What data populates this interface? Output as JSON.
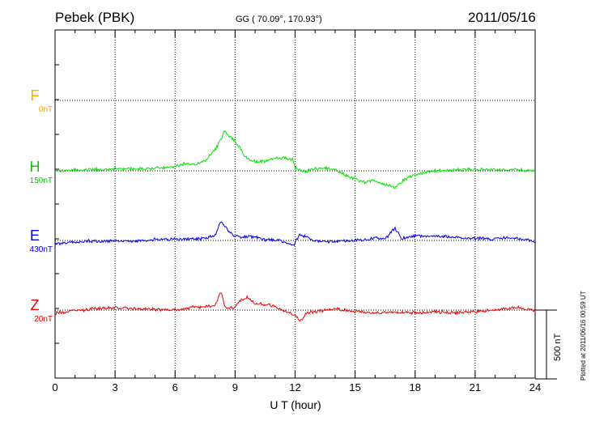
{
  "header": {
    "station": "Pebek (PBK)",
    "coords": "GG ( 70.09°, 170.93°)",
    "date": "2011/05/16"
  },
  "side_note": "Plotted at 2011/06/16 00:59 UT",
  "scale_bar": {
    "label": "500 nT",
    "value_nT": 500
  },
  "colors": {
    "F": "#ffa500",
    "H": "#00e000",
    "E": "#0000ee",
    "Z": "#ee0000"
  },
  "chart_data": {
    "type": "line",
    "xlabel": "U T (hour)",
    "xlim": [
      0,
      24
    ],
    "x_ticks": [
      "0",
      "3",
      "6",
      "9",
      "12",
      "15",
      "18",
      "21",
      "24"
    ],
    "grid": true,
    "components": [
      {
        "key": "F",
        "label": "F",
        "baseline": "0nT",
        "has_trace": false,
        "points": []
      },
      {
        "key": "H",
        "label": "H",
        "baseline": "150nT",
        "has_trace": true,
        "points": [
          [
            0,
            0
          ],
          [
            1,
            5
          ],
          [
            2,
            10
          ],
          [
            3,
            12
          ],
          [
            4,
            15
          ],
          [
            5,
            20
          ],
          [
            6,
            30
          ],
          [
            6.5,
            55
          ],
          [
            7,
            45
          ],
          [
            7.5,
            75
          ],
          [
            8,
            150
          ],
          [
            8.3,
            230
          ],
          [
            8.5,
            300
          ],
          [
            8.7,
            250
          ],
          [
            8.9,
            230
          ],
          [
            9.2,
            180
          ],
          [
            9.5,
            100
          ],
          [
            10,
            65
          ],
          [
            10.5,
            70
          ],
          [
            11,
            90
          ],
          [
            11.5,
            95
          ],
          [
            11.9,
            80
          ],
          [
            12,
            20
          ],
          [
            12.5,
            -5
          ],
          [
            13,
            15
          ],
          [
            13.5,
            20
          ],
          [
            14,
            10
          ],
          [
            14.5,
            -30
          ],
          [
            15,
            -60
          ],
          [
            15.5,
            -85
          ],
          [
            16,
            -70
          ],
          [
            16.5,
            -100
          ],
          [
            17,
            -120
          ],
          [
            17.5,
            -60
          ],
          [
            18,
            -30
          ],
          [
            18.5,
            -10
          ],
          [
            19,
            0
          ],
          [
            20,
            5
          ],
          [
            21,
            10
          ],
          [
            22,
            5
          ],
          [
            23,
            8
          ],
          [
            24,
            -5
          ]
        ]
      },
      {
        "key": "E",
        "label": "E",
        "baseline": "430nT",
        "has_trace": true,
        "points": [
          [
            0,
            -25
          ],
          [
            1,
            -10
          ],
          [
            2,
            -5
          ],
          [
            3,
            -5
          ],
          [
            4,
            -5
          ],
          [
            5,
            5
          ],
          [
            6,
            10
          ],
          [
            7,
            10
          ],
          [
            7.5,
            15
          ],
          [
            8,
            40
          ],
          [
            8.3,
            140
          ],
          [
            8.5,
            100
          ],
          [
            8.8,
            50
          ],
          [
            9.2,
            20
          ],
          [
            9.6,
            30
          ],
          [
            10,
            25
          ],
          [
            10.5,
            5
          ],
          [
            11,
            0
          ],
          [
            11.5,
            -10
          ],
          [
            11.9,
            -40
          ],
          [
            12.2,
            40
          ],
          [
            12.5,
            30
          ],
          [
            13,
            -5
          ],
          [
            14,
            -5
          ],
          [
            15,
            0
          ],
          [
            16,
            15
          ],
          [
            16.5,
            10
          ],
          [
            17,
            90
          ],
          [
            17.3,
            15
          ],
          [
            18,
            35
          ],
          [
            19,
            30
          ],
          [
            20,
            25
          ],
          [
            21,
            15
          ],
          [
            22,
            10
          ],
          [
            23,
            20
          ],
          [
            24,
            -5
          ]
        ]
      },
      {
        "key": "Z",
        "label": "Z",
        "baseline": "20nT",
        "has_trace": true,
        "points": [
          [
            0,
            -25
          ],
          [
            1,
            -5
          ],
          [
            2,
            10
          ],
          [
            3,
            15
          ],
          [
            4,
            10
          ],
          [
            5,
            5
          ],
          [
            6,
            0
          ],
          [
            6.5,
            10
          ],
          [
            7,
            20
          ],
          [
            7.5,
            25
          ],
          [
            8,
            30
          ],
          [
            8.3,
            140
          ],
          [
            8.5,
            20
          ],
          [
            9,
            20
          ],
          [
            9.2,
            60
          ],
          [
            9.6,
            90
          ],
          [
            10,
            50
          ],
          [
            10.5,
            40
          ],
          [
            11,
            30
          ],
          [
            11.5,
            -10
          ],
          [
            12,
            -40
          ],
          [
            12.3,
            -80
          ],
          [
            12.6,
            -20
          ],
          [
            13,
            -10
          ],
          [
            14,
            10
          ],
          [
            15,
            -10
          ],
          [
            16,
            -20
          ],
          [
            17,
            -15
          ],
          [
            18,
            -20
          ],
          [
            19,
            -10
          ],
          [
            20,
            -20
          ],
          [
            21,
            -10
          ],
          [
            22,
            0
          ],
          [
            23,
            20
          ],
          [
            24,
            -5
          ]
        ]
      }
    ]
  }
}
